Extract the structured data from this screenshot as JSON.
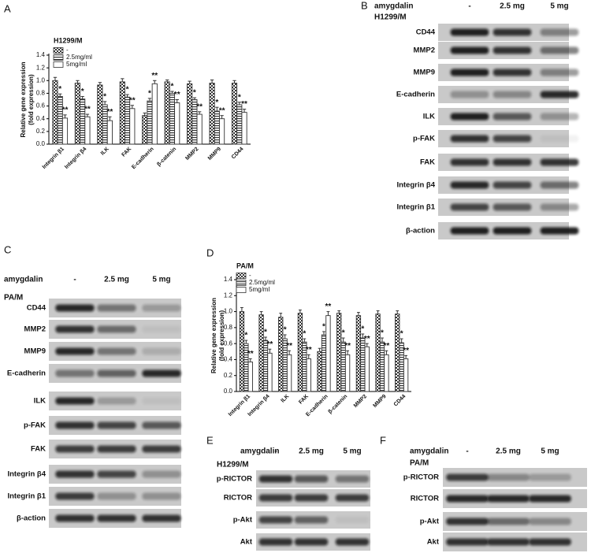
{
  "chart_data": [
    {
      "type": "bar",
      "panel": "A",
      "legend_title": "H1299/M",
      "ylabel": [
        "Relative gene expression",
        "(fold expression)"
      ],
      "categories": [
        "Integrin β1",
        "Integrin β4",
        "ILK",
        "FAK",
        "E-cadherin",
        "β-catenin",
        "MMP2",
        "MMP9",
        "CD44"
      ],
      "series": [
        {
          "name": "-",
          "color": "#333333",
          "pattern": "checkered",
          "values": [
            1.0,
            0.96,
            0.93,
            0.98,
            0.45,
            0.98,
            0.95,
            0.96,
            0.96
          ],
          "errors": [
            0.05,
            0.04,
            0.04,
            0.05,
            0.04,
            0.03,
            0.04,
            0.05,
            0.04
          ]
        },
        {
          "name": "2.5mg/ml",
          "color": "#333333",
          "pattern": "striped",
          "values": [
            0.75,
            0.71,
            0.62,
            0.74,
            0.68,
            0.8,
            0.7,
            0.52,
            0.62
          ],
          "errors": [
            0.04,
            0.04,
            0.05,
            0.04,
            0.04,
            0.03,
            0.03,
            0.06,
            0.04
          ],
          "significance": [
            "*",
            "*",
            "*",
            "*",
            "*",
            "*",
            "*",
            "*",
            "*"
          ]
        },
        {
          "name": "5mg/ml",
          "color": "#333333",
          "pattern": "none",
          "values": [
            0.41,
            0.43,
            0.37,
            0.56,
            0.95,
            0.65,
            0.47,
            0.4,
            0.5
          ],
          "errors": [
            0.05,
            0.04,
            0.06,
            0.05,
            0.05,
            0.05,
            0.04,
            0.05,
            0.05
          ],
          "significance": [
            "**",
            "**",
            "**",
            "**",
            "**",
            "**",
            "**",
            "**",
            "**"
          ]
        }
      ],
      "ylim": [
        0,
        1.4
      ],
      "yticks": [
        {
          "value": 0,
          "label": "0.0"
        },
        0.2,
        0.4,
        0.6,
        0.8,
        {
          "value": 1,
          "label": "1.0"
        },
        1.2,
        1.4
      ]
    },
    {
      "type": "bar",
      "panel": "D",
      "legend_title": "PA/M",
      "ylabel": [
        "Relative gene expression",
        "(fold expression)"
      ],
      "categories": [
        "Integrin β1",
        "Integrin β4",
        "ILK",
        "FAK",
        "E-cadherin",
        "β-catenin",
        "MMP2",
        "MMP9",
        "CD44"
      ],
      "series": [
        {
          "name": "-",
          "color": "#333333",
          "pattern": "checkered",
          "values": [
            1.0,
            0.96,
            0.93,
            0.98,
            0.5,
            0.98,
            0.95,
            0.97,
            0.97
          ],
          "errors": [
            0.05,
            0.04,
            0.05,
            0.04,
            0.04,
            0.03,
            0.04,
            0.04,
            0.04
          ]
        },
        {
          "name": "2.5mg/ml",
          "color": "#333333",
          "pattern": "striped",
          "values": [
            0.6,
            0.64,
            0.66,
            0.62,
            0.71,
            0.62,
            0.67,
            0.62,
            0.61
          ],
          "errors": [
            0.04,
            0.04,
            0.05,
            0.04,
            0.04,
            0.05,
            0.05,
            0.05,
            0.05
          ],
          "significance": [
            "*",
            "*",
            "*",
            "*",
            "*",
            "*",
            "*",
            "*",
            "*"
          ]
        },
        {
          "name": "5mg/ml",
          "color": "#333333",
          "pattern": "none",
          "values": [
            0.37,
            0.48,
            0.46,
            0.41,
            0.95,
            0.46,
            0.56,
            0.46,
            0.41
          ],
          "errors": [
            0.04,
            0.05,
            0.05,
            0.05,
            0.05,
            0.05,
            0.04,
            0.05,
            0.04
          ],
          "significance": [
            "**",
            "**",
            "**",
            "**",
            "**",
            "**",
            "**",
            "**",
            "**"
          ]
        }
      ],
      "ylim": [
        0,
        1.4
      ],
      "yticks": [
        {
          "value": 0,
          "label": "0.0"
        },
        0.2,
        0.4,
        0.6,
        0.8,
        {
          "value": 1,
          "label": "1.0"
        },
        1.2,
        1.4
      ]
    }
  ],
  "blots": [
    {
      "panel": "B",
      "treatment": "amygdalin",
      "lanes": [
        "-",
        "2.5 mg",
        "5 mg"
      ],
      "cell_line": "H1299/M",
      "rows": [
        "CD44",
        "MMP2",
        "MMP9",
        "E-cadherin",
        "ILK",
        "p-FAK",
        "FAK",
        "Integrin β4",
        "Integrin β1",
        "β-action"
      ]
    },
    {
      "panel": "C",
      "treatment": "amygdalin",
      "lanes": [
        "-",
        "2.5 mg",
        "5 mg"
      ],
      "cell_line": "PA/M",
      "rows": [
        "CD44",
        "MMP2",
        "MMP9",
        "E-cadherin",
        "ILK",
        "p-FAK",
        "FAK",
        "Integrin β4",
        "Integrin β1",
        "β-action"
      ]
    },
    {
      "panel": "E",
      "treatment": "amygdalin",
      "lanes": [
        "-",
        "2.5 mg",
        "5 mg"
      ],
      "cell_line": "H1299/M",
      "rows": [
        "p-RICTOR",
        "RICTOR",
        "p-Akt",
        "Akt"
      ]
    },
    {
      "panel": "F",
      "treatment": "amygdalin",
      "lanes": [
        "-",
        "2.5 mg",
        "5 mg"
      ],
      "cell_line": "PA/M",
      "rows": [
        "p-RICTOR",
        "RICTOR",
        "p-Akt",
        "Akt"
      ]
    }
  ]
}
